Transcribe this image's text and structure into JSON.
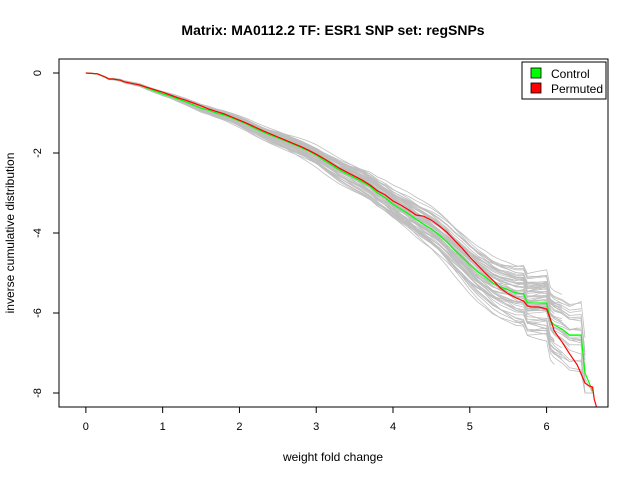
{
  "chart_data": {
    "type": "line",
    "title": "Matrix: MA0112.2 TF: ESR1 SNP set: regSNPs",
    "xlabel": "weight fold change",
    "ylabel": "inverse cumulative distribution",
    "xlim": [
      -0.35,
      6.8
    ],
    "ylim": [
      -8.35,
      0.35
    ],
    "x_ticks": [
      0,
      1,
      2,
      3,
      4,
      5,
      6
    ],
    "y_ticks": [
      0,
      -2,
      -4,
      -6,
      -8
    ],
    "grid": false,
    "legend_position": "top-right",
    "colors": {
      "background_runs": "#bebebe",
      "control": "#00ff00",
      "permuted": "#ff0000",
      "axes": "#000000"
    },
    "legend": [
      {
        "label": "Control",
        "color": "#00ff00"
      },
      {
        "label": "Permuted",
        "color": "#ff0000"
      }
    ],
    "series": [
      {
        "name": "Control",
        "x": [
          0,
          0.15,
          0.25,
          0.3,
          0.35,
          0.45,
          0.5,
          0.6,
          0.7,
          0.8,
          0.9,
          1.0,
          1.1,
          1.2,
          1.3,
          1.4,
          1.5,
          1.6,
          1.7,
          1.8,
          1.9,
          2.0,
          2.1,
          2.2,
          2.3,
          2.4,
          2.5,
          2.6,
          2.7,
          2.8,
          2.9,
          3.0,
          3.1,
          3.2,
          3.3,
          3.4,
          3.5,
          3.6,
          3.7,
          3.8,
          3.9,
          4.0,
          4.1,
          4.2,
          4.3,
          4.4,
          4.5,
          4.6,
          4.7,
          4.8,
          4.9,
          5.0,
          5.1,
          5.2,
          5.3,
          5.4,
          5.5,
          5.6,
          5.7,
          5.75,
          5.8,
          5.9,
          6.0,
          6.05,
          6.1,
          6.2,
          6.3,
          6.4,
          6.45,
          6.5,
          6.6
        ],
        "y": [
          0,
          -0.02,
          -0.1,
          -0.15,
          -0.15,
          -0.18,
          -0.22,
          -0.26,
          -0.3,
          -0.38,
          -0.45,
          -0.52,
          -0.58,
          -0.65,
          -0.72,
          -0.8,
          -0.88,
          -0.93,
          -1.0,
          -1.05,
          -1.12,
          -1.2,
          -1.28,
          -1.38,
          -1.47,
          -1.55,
          -1.62,
          -1.7,
          -1.78,
          -1.86,
          -1.95,
          -2.05,
          -2.18,
          -2.3,
          -2.42,
          -2.52,
          -2.62,
          -2.72,
          -2.83,
          -3.0,
          -3.12,
          -3.28,
          -3.4,
          -3.52,
          -3.66,
          -3.78,
          -3.9,
          -4.05,
          -4.22,
          -4.42,
          -4.6,
          -4.8,
          -4.97,
          -5.1,
          -5.25,
          -5.35,
          -5.42,
          -5.5,
          -5.52,
          -5.75,
          -5.75,
          -5.75,
          -5.75,
          -6.2,
          -6.3,
          -6.4,
          -6.55,
          -6.55,
          -6.55,
          -7.5,
          -7.95
        ]
      },
      {
        "name": "Permuted",
        "x": [
          0,
          0.15,
          0.25,
          0.3,
          0.35,
          0.45,
          0.5,
          0.6,
          0.7,
          0.8,
          0.9,
          1.0,
          1.1,
          1.2,
          1.3,
          1.4,
          1.5,
          1.6,
          1.7,
          1.8,
          1.9,
          2.0,
          2.1,
          2.2,
          2.3,
          2.4,
          2.5,
          2.6,
          2.7,
          2.8,
          2.9,
          3.0,
          3.1,
          3.2,
          3.3,
          3.4,
          3.5,
          3.6,
          3.7,
          3.8,
          3.9,
          4.0,
          4.1,
          4.2,
          4.3,
          4.4,
          4.5,
          4.6,
          4.7,
          4.8,
          4.9,
          5.0,
          5.1,
          5.2,
          5.3,
          5.4,
          5.5,
          5.6,
          5.7,
          5.75,
          5.8,
          5.9,
          6.0,
          6.05,
          6.1,
          6.2,
          6.3,
          6.4,
          6.5,
          6.55,
          6.6,
          6.62,
          6.65
        ],
        "y": [
          0,
          -0.02,
          -0.1,
          -0.15,
          -0.15,
          -0.18,
          -0.22,
          -0.26,
          -0.3,
          -0.36,
          -0.42,
          -0.48,
          -0.55,
          -0.62,
          -0.68,
          -0.75,
          -0.82,
          -0.9,
          -0.96,
          -1.02,
          -1.1,
          -1.18,
          -1.26,
          -1.35,
          -1.44,
          -1.52,
          -1.6,
          -1.68,
          -1.76,
          -1.84,
          -1.93,
          -2.03,
          -2.14,
          -2.26,
          -2.38,
          -2.48,
          -2.58,
          -2.68,
          -2.8,
          -2.95,
          -3.05,
          -3.2,
          -3.3,
          -3.42,
          -3.55,
          -3.58,
          -3.68,
          -3.82,
          -3.98,
          -4.18,
          -4.38,
          -4.6,
          -4.8,
          -5.0,
          -5.18,
          -5.38,
          -5.52,
          -5.62,
          -5.7,
          -5.82,
          -5.85,
          -5.85,
          -5.9,
          -6.15,
          -6.45,
          -6.72,
          -7.02,
          -7.3,
          -7.75,
          -7.82,
          -7.85,
          -8.15,
          -8.35
        ]
      }
    ]
  }
}
